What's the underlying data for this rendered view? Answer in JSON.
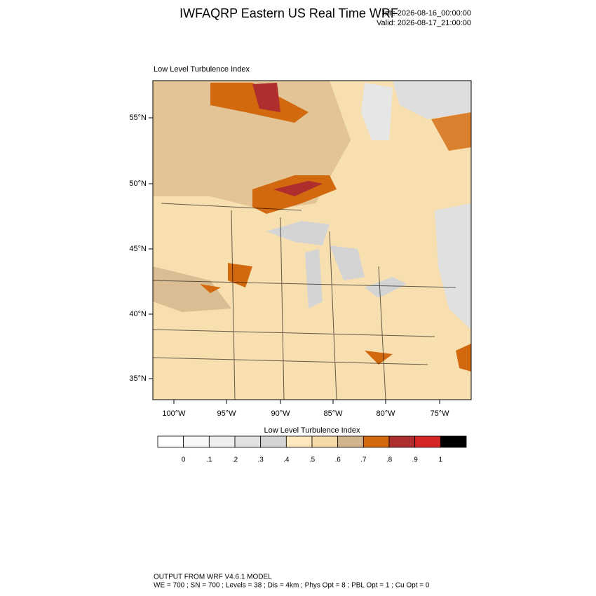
{
  "header": {
    "title": "IWFAQRP Eastern US Real Time WRF",
    "init": "Init: 2026-08-16_00:00:00",
    "valid": "Valid: 2026-08-17_21:00:00"
  },
  "map": {
    "title": "Low Level Turbulence Index",
    "lat_labels": [
      "55°N",
      "50°N",
      "45°N",
      "40°N",
      "35°N"
    ],
    "lon_labels": [
      "100°W",
      "95°W",
      "90°W",
      "85°W",
      "80°W",
      "75°W"
    ]
  },
  "colorbar": {
    "title": "Low Level Turbulence Index",
    "colors": [
      "#ffffff",
      "#f7f7f7",
      "#eeeeee",
      "#e1e1e1",
      "#d4d4d4",
      "#fde7bd",
      "#f5d9a8",
      "#d2b48c",
      "#d2690f",
      "#ae2d2d",
      "#d62728",
      "#000000"
    ],
    "labels": [
      "0",
      ".1",
      ".2",
      ".3",
      ".4",
      ".5",
      ".6",
      ".7",
      ".8",
      ".9",
      "1"
    ]
  },
  "footer": {
    "line1": "OUTPUT FROM WRF V4.6.1 MODEL",
    "line2": "WE = 700 ; SN = 700 ; Levels = 38 ; Dis = 4km ; Phys Opt = 8 ; PBL Opt = 1 ; Cu Opt = 0"
  }
}
